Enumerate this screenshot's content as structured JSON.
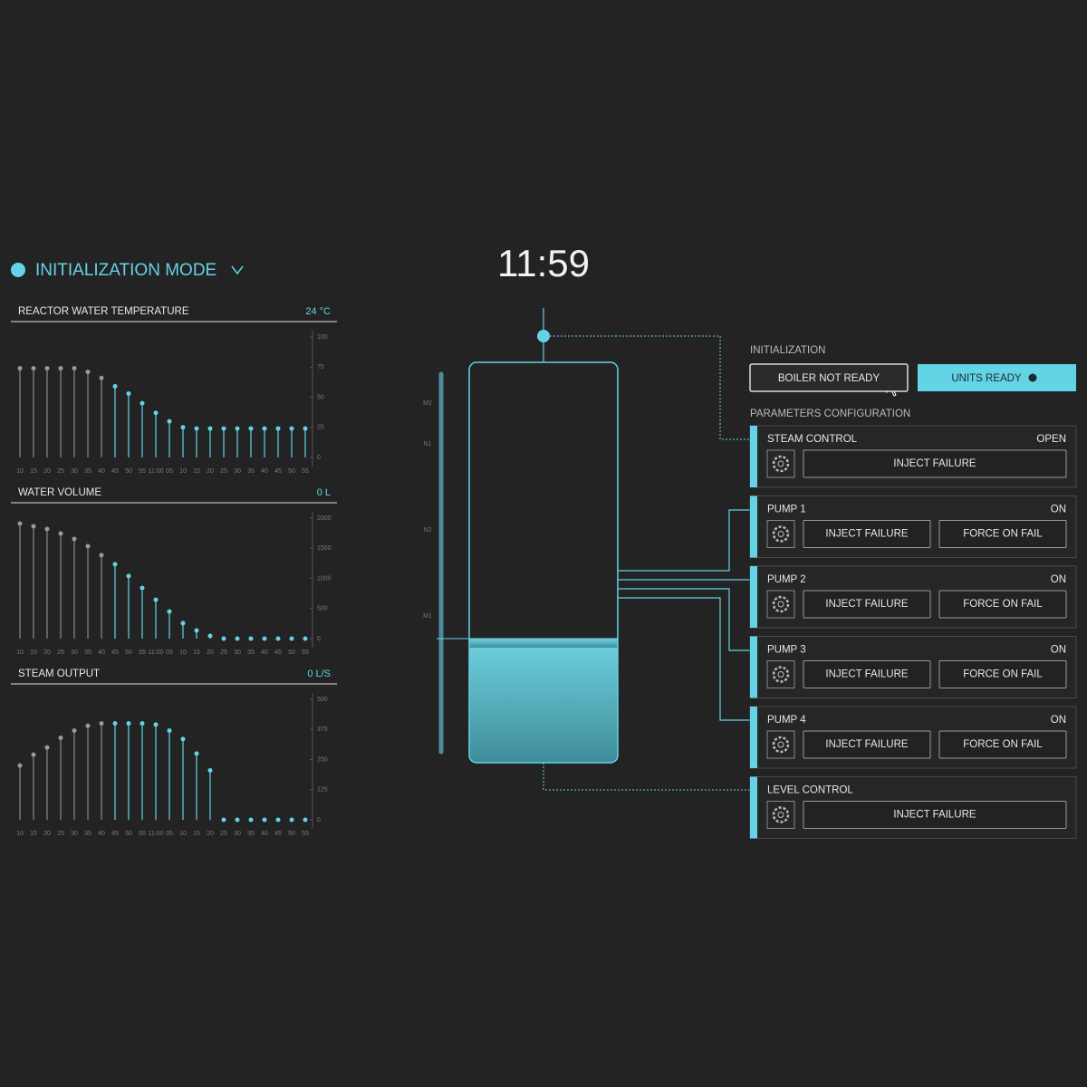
{
  "header": {
    "mode": "INITIALIZATION MODE",
    "clock": "11:59"
  },
  "charts": [
    {
      "title": "REACTOR WATER TEMPERATURE",
      "reading": "24 °C",
      "ylim": [
        0,
        100
      ],
      "yticks": [
        0,
        25,
        50,
        75,
        100
      ],
      "x": [
        "10",
        "15",
        "20",
        "25",
        "30",
        "35",
        "40",
        "45",
        "50",
        "55",
        "11:00",
        "05",
        "10",
        "15",
        "20",
        "25",
        "30",
        "35",
        "40",
        "45",
        "50",
        "55"
      ],
      "values": [
        74,
        74,
        74,
        74,
        74,
        71,
        66,
        59,
        53,
        45,
        37,
        30,
        25,
        24,
        24,
        24,
        24,
        24,
        24,
        24,
        24,
        24
      ]
    },
    {
      "title": "WATER VOLUME",
      "reading": "0 L",
      "ylim": [
        0,
        2000
      ],
      "yticks": [
        0,
        500,
        1000,
        1500,
        2000
      ],
      "x": [
        "10",
        "15",
        "20",
        "25",
        "30",
        "35",
        "40",
        "45",
        "50",
        "55",
        "11:00",
        "05",
        "10",
        "15",
        "20",
        "25",
        "30",
        "35",
        "40",
        "45",
        "50",
        "55"
      ],
      "values": [
        1910,
        1865,
        1820,
        1745,
        1655,
        1535,
        1385,
        1235,
        1040,
        840,
        645,
        450,
        255,
        135,
        45,
        0,
        0,
        0,
        0,
        0,
        0,
        0
      ]
    },
    {
      "title": "STEAM OUTPUT",
      "reading": "0 L/S",
      "ylim": [
        0,
        500
      ],
      "yticks": [
        0,
        125,
        250,
        375,
        500
      ],
      "x": [
        "10",
        "15",
        "20",
        "25",
        "30",
        "35",
        "40",
        "45",
        "50",
        "55",
        "11:00",
        "05",
        "10",
        "15",
        "20",
        "25",
        "30",
        "35",
        "40",
        "45",
        "50",
        "55"
      ],
      "values": [
        225,
        270,
        300,
        340,
        370,
        390,
        400,
        400,
        400,
        400,
        395,
        370,
        335,
        275,
        205,
        0,
        0,
        0,
        0,
        0,
        0,
        0
      ]
    }
  ],
  "tank": {
    "levels": [
      "M2",
      "N1",
      "N2",
      "M1"
    ]
  },
  "initialization": {
    "title": "INITIALIZATION",
    "buttons": [
      "BOILER NOT READY",
      "UNITS READY"
    ]
  },
  "parameters": {
    "title": "PARAMETERS CONFIGURATION",
    "units": [
      {
        "name": "STEAM CONTROL",
        "status": "OPEN",
        "actions": [
          "INJECT FAILURE"
        ]
      },
      {
        "name": "PUMP 1",
        "status": "ON",
        "actions": [
          "INJECT FAILURE",
          "FORCE ON FAIL"
        ]
      },
      {
        "name": "PUMP 2",
        "status": "ON",
        "actions": [
          "INJECT FAILURE",
          "FORCE ON FAIL"
        ]
      },
      {
        "name": "PUMP 3",
        "status": "ON",
        "actions": [
          "INJECT FAILURE",
          "FORCE ON FAIL"
        ]
      },
      {
        "name": "PUMP 4",
        "status": "ON",
        "actions": [
          "INJECT FAILURE",
          "FORCE ON FAIL"
        ]
      },
      {
        "name": "LEVEL CONTROL",
        "actions": [
          "INJECT FAILURE"
        ]
      }
    ]
  }
}
